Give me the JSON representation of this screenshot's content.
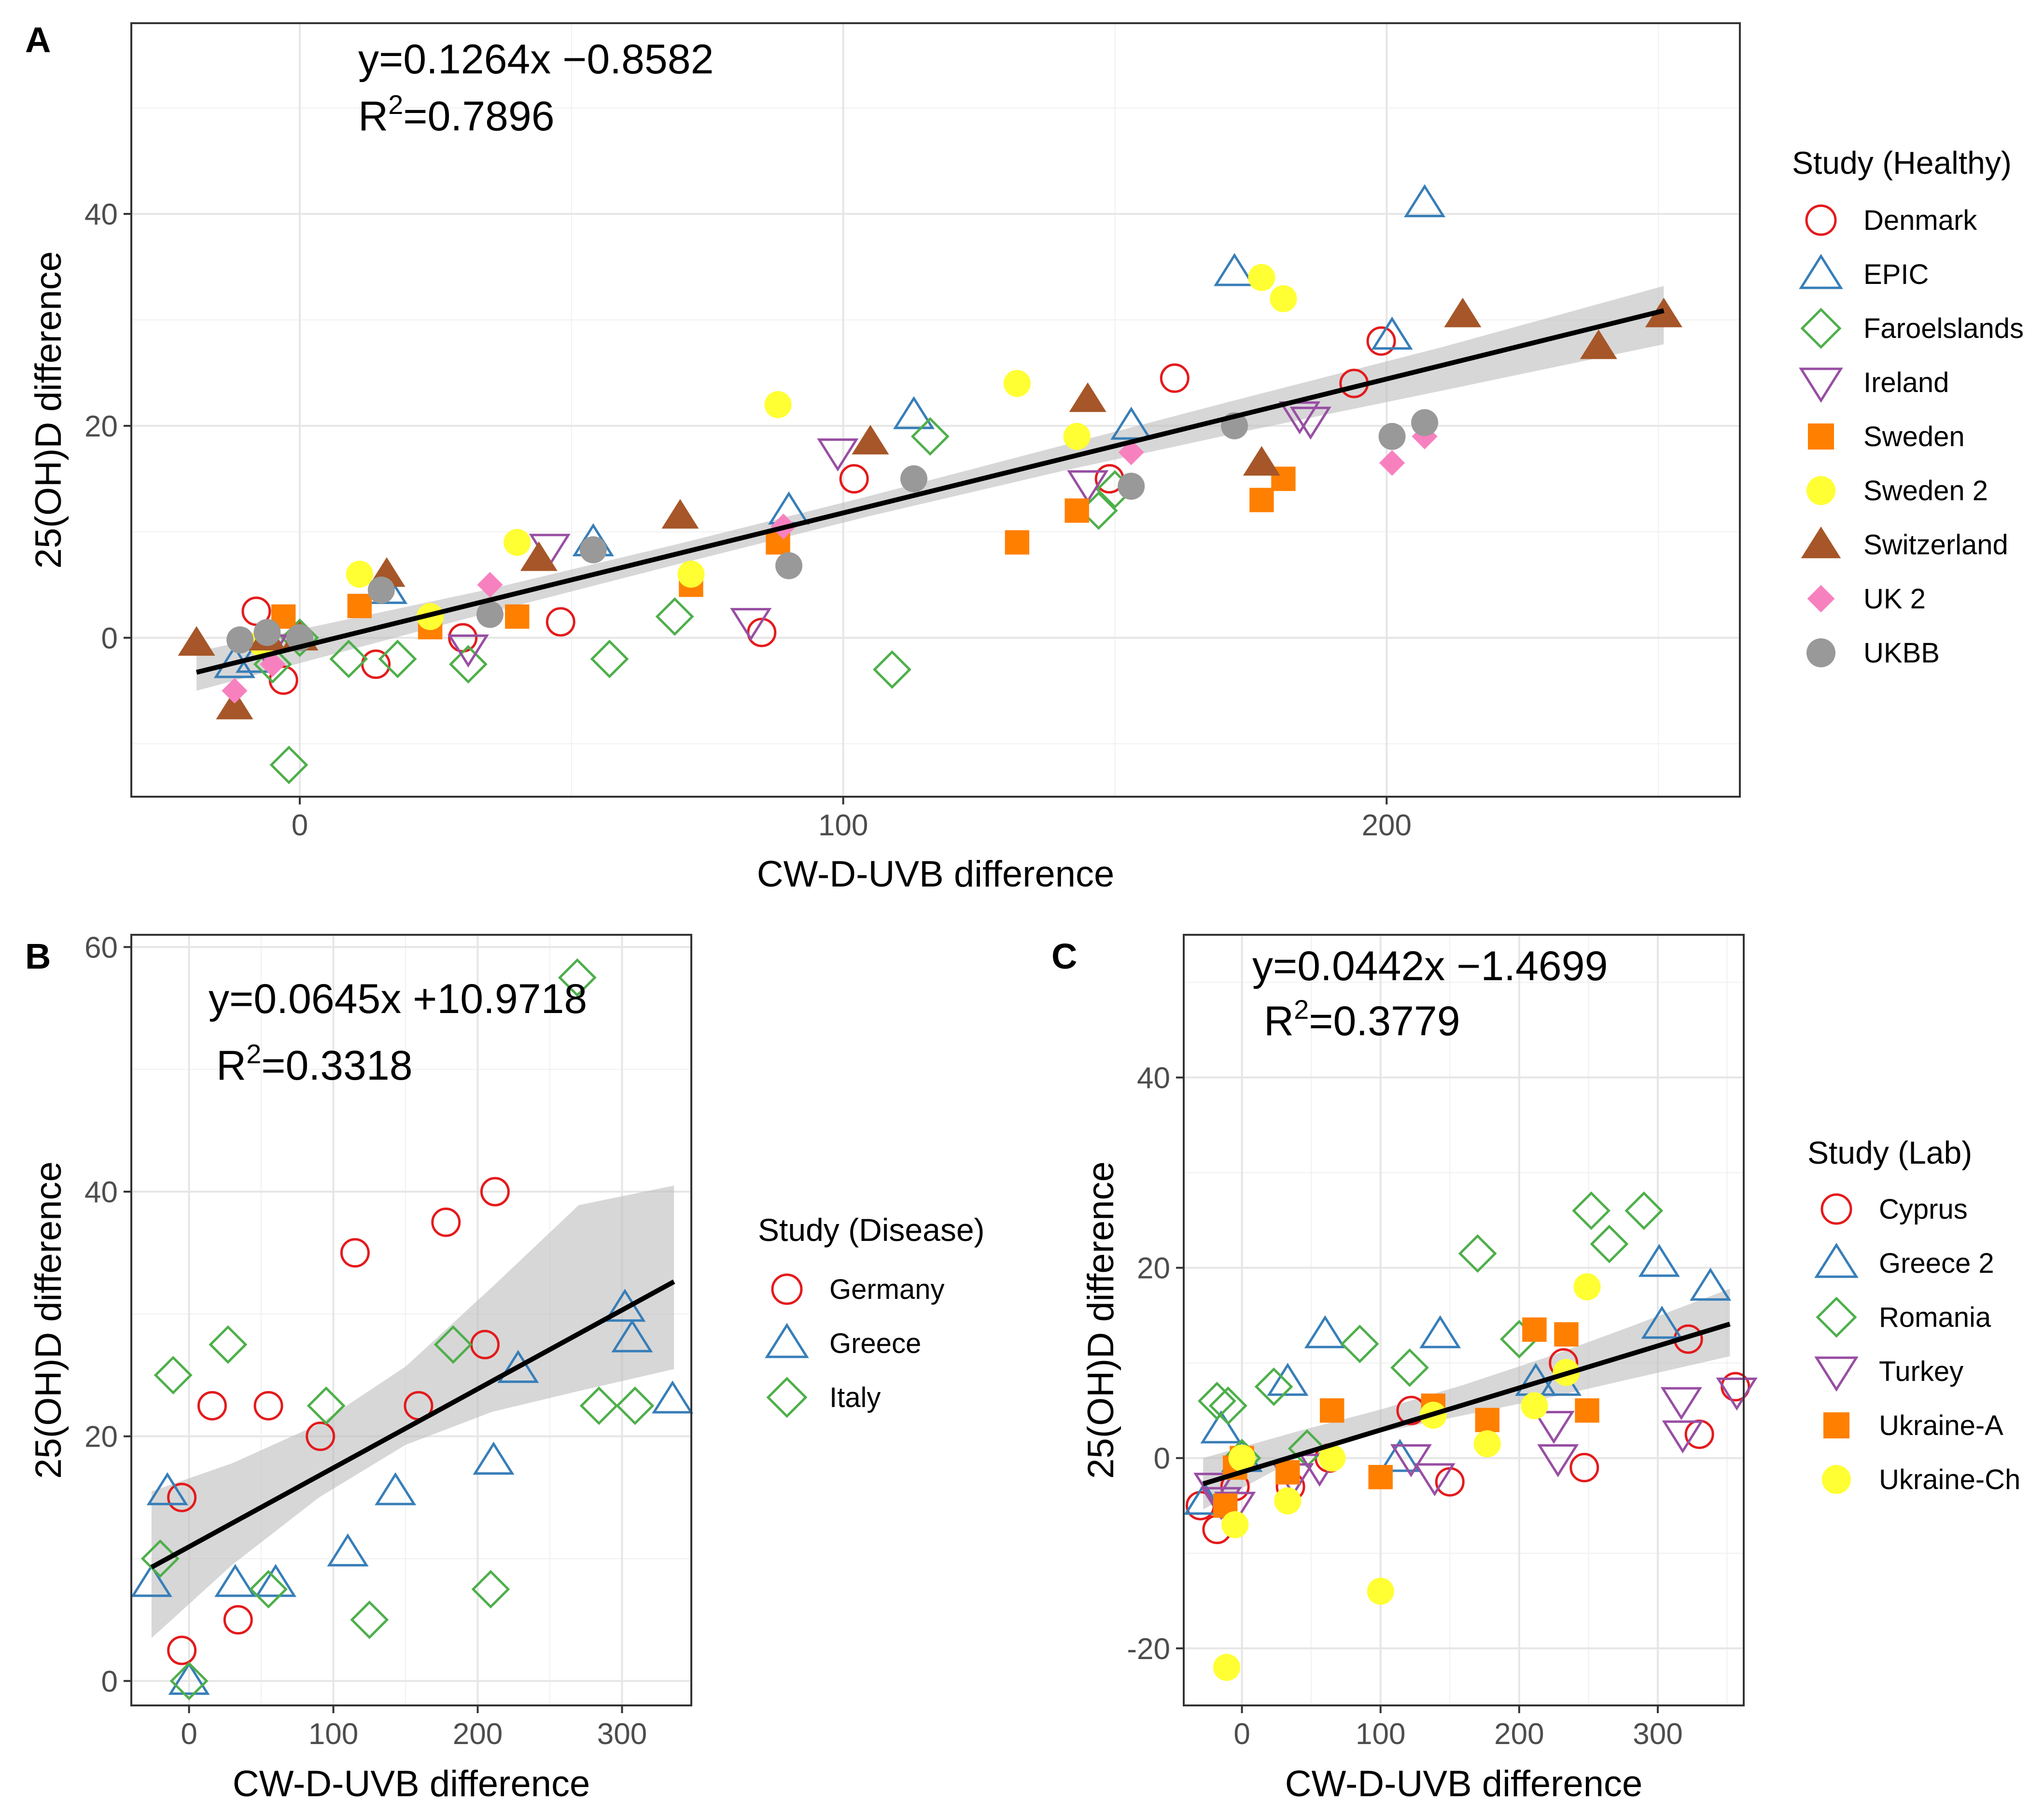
{
  "colors": {
    "Denmark": "#E41A1C",
    "EPIC": "#377EB8",
    "Faroelslands": "#4DAF4A",
    "Ireland": "#984EA3",
    "Sweden": "#FF7F00",
    "Sweden 2": "#FFFF33",
    "Switzerland": "#A65628",
    "UK 2": "#F781BF",
    "UKBB": "#999999",
    "Germany": "#E41A1C",
    "Greece": "#377EB8",
    "Italy": "#4DAF4A",
    "Cyprus": "#E41A1C",
    "Greece 2": "#377EB8",
    "Romania": "#4DAF4A",
    "Turkey": "#984EA3",
    "Ukraine-A": "#FF7F00",
    "Ukraine-Ch": "#FFFF33"
  },
  "chart_data": [
    {
      "panel": "A",
      "type": "scatter",
      "xlabel": "CW-D-UVB difference",
      "ylabel": "25(OH)D difference",
      "xlim": [
        -31,
        265
      ],
      "ylim": [
        -15,
        58
      ],
      "xticks": [
        0,
        100,
        200
      ],
      "yticks": [
        0,
        20,
        40
      ],
      "equation": "y=0.1264x −0.8582",
      "r2_prefix": "R",
      "r2_sup": "2",
      "r2_value": "=0.7896",
      "fit": {
        "slope": 0.1264,
        "intercept": -0.8582,
        "x_range": [
          -19,
          251
        ]
      },
      "band": {
        "x": [
          -19,
          35,
          70,
          105,
          140,
          175,
          210,
          251
        ],
        "lower": [
          -5.0,
          2.4,
          7.0,
          11.5,
          15.7,
          19.6,
          23.3,
          27.7
        ],
        "upper": [
          -1.3,
          4.6,
          8.9,
          13.4,
          18.1,
          22.8,
          27.4,
          33.2
        ]
      },
      "legend_title": "Study (Healthy)",
      "series": [
        {
          "name": "Denmark",
          "marker": "circle-open",
          "points": [
            [
              -8,
              2.5
            ],
            [
              -3,
              -4
            ],
            [
              14,
              -2.5
            ],
            [
              30,
              0
            ],
            [
              48,
              1.5
            ],
            [
              85,
              0.5
            ],
            [
              102,
              15
            ],
            [
              149,
              15
            ],
            [
              161,
              24.5
            ],
            [
              194,
              24
            ],
            [
              199,
              28
            ]
          ]
        },
        {
          "name": "EPIC",
          "marker": "triangle-open",
          "points": [
            [
              -12,
              -2.5
            ],
            [
              -8,
              -2
            ],
            [
              16,
              4.5
            ],
            [
              54,
              9
            ],
            [
              90,
              12
            ],
            [
              113,
              21
            ],
            [
              153,
              20
            ],
            [
              172,
              34.5
            ],
            [
              201,
              28.5
            ],
            [
              207,
              41
            ]
          ]
        },
        {
          "name": "Faroelslands",
          "marker": "diamond-open",
          "points": [
            [
              -5,
              -2.5
            ],
            [
              -2,
              -12
            ],
            [
              0,
              0
            ],
            [
              9,
              -2
            ],
            [
              18,
              -2
            ],
            [
              31,
              -2.5
            ],
            [
              57,
              -2
            ],
            [
              69,
              2
            ],
            [
              109,
              -3
            ],
            [
              116,
              19
            ],
            [
              147,
              12
            ],
            [
              150,
              14
            ]
          ]
        },
        {
          "name": "Ireland",
          "marker": "triangle-down-open",
          "points": [
            [
              -6,
              -1
            ],
            [
              31,
              -1
            ],
            [
              46,
              8.5
            ],
            [
              83,
              1.5
            ],
            [
              99,
              17.5
            ],
            [
              145,
              14.5
            ],
            [
              184,
              21
            ],
            [
              186,
              20.5
            ]
          ]
        },
        {
          "name": "Sweden",
          "marker": "square",
          "points": [
            [
              -3,
              2
            ],
            [
              11,
              3
            ],
            [
              24,
              1
            ],
            [
              40,
              2
            ],
            [
              72,
              5
            ],
            [
              88,
              9
            ],
            [
              132,
              9
            ],
            [
              143,
              12
            ],
            [
              177,
              13
            ],
            [
              181,
              15
            ]
          ]
        },
        {
          "name": "Sweden 2",
          "marker": "circle",
          "points": [
            [
              -7,
              -0.5
            ],
            [
              11,
              6
            ],
            [
              24,
              2
            ],
            [
              40,
              9
            ],
            [
              72,
              6
            ],
            [
              88,
              22
            ],
            [
              132,
              24
            ],
            [
              143,
              19
            ],
            [
              177,
              34
            ],
            [
              181,
              32
            ]
          ]
        },
        {
          "name": "Switzerland",
          "marker": "triangle",
          "points": [
            [
              -19,
              -0.5
            ],
            [
              -12,
              -6.5
            ],
            [
              -6,
              0
            ],
            [
              0,
              0
            ],
            [
              16,
              6
            ],
            [
              44,
              7.5
            ],
            [
              70,
              11.5
            ],
            [
              105,
              18.5
            ],
            [
              145,
              22.5
            ],
            [
              177,
              16.5
            ],
            [
              214,
              30.5
            ],
            [
              239,
              27.5
            ],
            [
              251,
              30.5
            ]
          ]
        },
        {
          "name": "UK 2",
          "marker": "diamond",
          "points": [
            [
              -12,
              -5
            ],
            [
              -5,
              -2.5
            ],
            [
              0,
              0
            ],
            [
              35,
              5
            ],
            [
              89,
              10.5
            ],
            [
              153,
              17.5
            ],
            [
              201,
              16.5
            ],
            [
              207,
              19
            ]
          ]
        },
        {
          "name": "UKBB",
          "marker": "circle",
          "points": [
            [
              -11,
              -0.2
            ],
            [
              -6,
              0.5
            ],
            [
              0,
              0
            ],
            [
              15,
              4.5
            ],
            [
              35,
              2.2
            ],
            [
              54,
              8.3
            ],
            [
              90,
              6.8
            ],
            [
              113,
              15
            ],
            [
              153,
              14.3
            ],
            [
              172,
              20
            ],
            [
              201,
              19
            ],
            [
              207,
              20.3
            ]
          ]
        }
      ]
    },
    {
      "panel": "B",
      "type": "scatter",
      "xlabel": "CW-D-UVB difference",
      "ylabel": "25(OH)D difference",
      "xlim": [
        -40,
        348
      ],
      "ylim": [
        -2,
        61
      ],
      "xticks": [
        0,
        100,
        200,
        300
      ],
      "yticks": [
        0,
        20,
        40,
        60
      ],
      "equation": "y=0.0645x +10.9718",
      "r2_prefix": "R",
      "r2_sup": "2",
      "r2_value": "=0.3318",
      "fit": {
        "slope": 0.0645,
        "intercept": 10.9718,
        "x_range": [
          -26,
          336
        ]
      },
      "band": {
        "x": [
          -26,
          30,
          90,
          150,
          210,
          270,
          336
        ],
        "lower": [
          3.5,
          9.5,
          15.0,
          19.3,
          22.0,
          23.7,
          25.5
        ],
        "upper": [
          15.5,
          17.8,
          21.0,
          25.7,
          32.2,
          38.9,
          40.5
        ]
      },
      "legend_title": "Study (Disease)",
      "series": [
        {
          "name": "Germany",
          "marker": "circle-open",
          "points": [
            [
              -5,
              2.5
            ],
            [
              -5,
              15
            ],
            [
              16,
              22.5
            ],
            [
              34,
              5
            ],
            [
              55,
              22.5
            ],
            [
              91,
              20
            ],
            [
              115,
              35
            ],
            [
              159,
              22.5
            ],
            [
              178,
              37.5
            ],
            [
              205,
              27.5
            ],
            [
              212,
              40
            ]
          ]
        },
        {
          "name": "Greece",
          "marker": "triangle-open",
          "points": [
            [
              -26,
              8
            ],
            [
              -15,
              15.5
            ],
            [
              0,
              0
            ],
            [
              32,
              8
            ],
            [
              60,
              8
            ],
            [
              110,
              10.5
            ],
            [
              143,
              15.5
            ],
            [
              211,
              18
            ],
            [
              228,
              25.5
            ],
            [
              302,
              30.5
            ],
            [
              307,
              28
            ],
            [
              335,
              23
            ]
          ]
        },
        {
          "name": "Italy",
          "marker": "diamond-open",
          "points": [
            [
              -20,
              10
            ],
            [
              -11,
              25
            ],
            [
              0,
              0
            ],
            [
              27,
              27.5
            ],
            [
              55,
              7.5
            ],
            [
              95,
              22.5
            ],
            [
              125,
              5
            ],
            [
              183,
              27.5
            ],
            [
              209,
              7.5
            ],
            [
              269,
              57.5
            ],
            [
              284,
              22.5
            ],
            [
              309,
              22.5
            ]
          ]
        }
      ]
    },
    {
      "panel": "C",
      "type": "scatter",
      "xlabel": "CW-D-UVB difference",
      "ylabel": "25(OH)D difference",
      "xlim": [
        -42,
        362
      ],
      "ylim": [
        -26,
        55
      ],
      "xticks": [
        0,
        100,
        200,
        300
      ],
      "yticks": [
        -20,
        0,
        20,
        40
      ],
      "equation": "y=0.0442x −1.4699",
      "r2_prefix": "R",
      "r2_sup": "2",
      "r2_value": "=0.3779",
      "fit": {
        "slope": 0.0442,
        "intercept": -1.4699,
        "x_range": [
          -28,
          352
        ]
      },
      "band": {
        "x": [
          -28,
          40,
          100,
          160,
          220,
          280,
          352
        ],
        "lower": [
          -5.4,
          0.0,
          2.7,
          4.5,
          6.3,
          8.3,
          10.7
        ],
        "upper": [
          0.0,
          2.8,
          5.1,
          7.7,
          10.6,
          13.8,
          17.8
        ]
      },
      "legend_title": "Study (Lab)",
      "series": [
        {
          "name": "Cyprus",
          "marker": "circle-open",
          "points": [
            [
              -30,
              -5
            ],
            [
              -18,
              -7.5
            ],
            [
              -5,
              -3
            ],
            [
              35,
              -3
            ],
            [
              63,
              0
            ],
            [
              122,
              5
            ],
            [
              150,
              -2.5
            ],
            [
              232,
              10
            ],
            [
              247,
              -1
            ],
            [
              322,
              12.5
            ],
            [
              330,
              2.5
            ],
            [
              356,
              7.5
            ]
          ]
        },
        {
          "name": "Greece 2",
          "marker": "triangle-open",
          "points": [
            [
              -27,
              -4.5
            ],
            [
              -15,
              3
            ],
            [
              0,
              0
            ],
            [
              33,
              8
            ],
            [
              60,
              13
            ],
            [
              114,
              0
            ],
            [
              143,
              13
            ],
            [
              212,
              8
            ],
            [
              230,
              8
            ],
            [
              301,
              20.5
            ],
            [
              303,
              14
            ],
            [
              338,
              18
            ]
          ]
        },
        {
          "name": "Romania",
          "marker": "diamond-open",
          "points": [
            [
              -18,
              6
            ],
            [
              -10,
              5.5
            ],
            [
              0,
              0
            ],
            [
              23,
              7.5
            ],
            [
              47,
              1
            ],
            [
              85,
              12
            ],
            [
              121,
              9.5
            ],
            [
              170,
              21.5
            ],
            [
              200,
              12.5
            ],
            [
              252,
              26
            ],
            [
              265,
              22.5
            ],
            [
              290,
              26
            ]
          ]
        },
        {
          "name": "Turkey",
          "marker": "triangle-down-open",
          "points": [
            [
              -20,
              -3
            ],
            [
              -15,
              -4.5
            ],
            [
              -5,
              -5
            ],
            [
              37,
              -2
            ],
            [
              56,
              -1
            ],
            [
              122,
              0
            ],
            [
              139,
              -2
            ],
            [
              225,
              3.5
            ],
            [
              228,
              0
            ],
            [
              317,
              6
            ],
            [
              318,
              2.5
            ],
            [
              357,
              7
            ]
          ]
        },
        {
          "name": "Ukraine-A",
          "marker": "square",
          "points": [
            [
              -12,
              -5
            ],
            [
              -5,
              -1
            ],
            [
              0,
              0
            ],
            [
              33,
              -1.5
            ],
            [
              65,
              5
            ],
            [
              100,
              -2
            ],
            [
              138,
              5.5
            ],
            [
              177,
              4
            ],
            [
              211,
              13.5
            ],
            [
              234,
              13
            ],
            [
              249,
              5
            ]
          ]
        },
        {
          "name": "Ukraine-Ch",
          "marker": "circle",
          "points": [
            [
              -11,
              -22
            ],
            [
              -5,
              -7
            ],
            [
              0,
              0
            ],
            [
              33,
              -4.5
            ],
            [
              65,
              0
            ],
            [
              100,
              -14
            ],
            [
              138,
              4.5
            ],
            [
              177,
              1.5
            ],
            [
              211,
              5.5
            ],
            [
              234,
              9
            ],
            [
              249,
              18
            ]
          ]
        }
      ]
    }
  ]
}
